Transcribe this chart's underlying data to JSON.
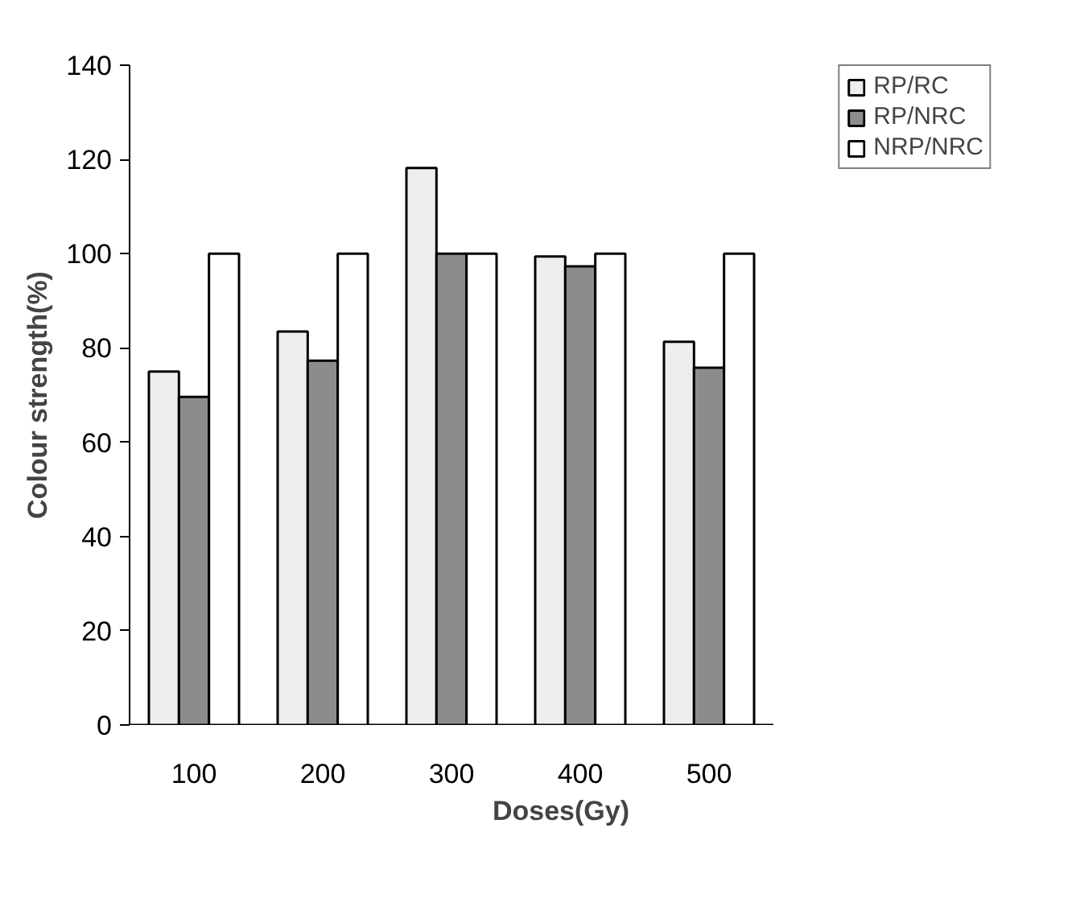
{
  "chart_data": {
    "type": "bar",
    "xlabel": "Doses(Gy)",
    "ylabel": "Colour strength(%)",
    "categories": [
      "100",
      "200",
      "300",
      "400",
      "500"
    ],
    "series": [
      {
        "name": "RP/RC",
        "color": "#eeeeee",
        "values": [
          75.0,
          83.5,
          118.2,
          99.4,
          81.3
        ]
      },
      {
        "name": "RP/NRC",
        "color": "#8c8c8c",
        "values": [
          69.6,
          77.3,
          100,
          97.3,
          75.8
        ]
      },
      {
        "name": "NRP/NRC",
        "color": "#ffffff",
        "values": [
          100,
          100,
          100,
          100,
          100
        ]
      }
    ],
    "ylim": [
      0,
      140
    ],
    "yticks": [
      0,
      20,
      40,
      60,
      80,
      100,
      120,
      140
    ],
    "grid": false,
    "legend": "top right"
  }
}
